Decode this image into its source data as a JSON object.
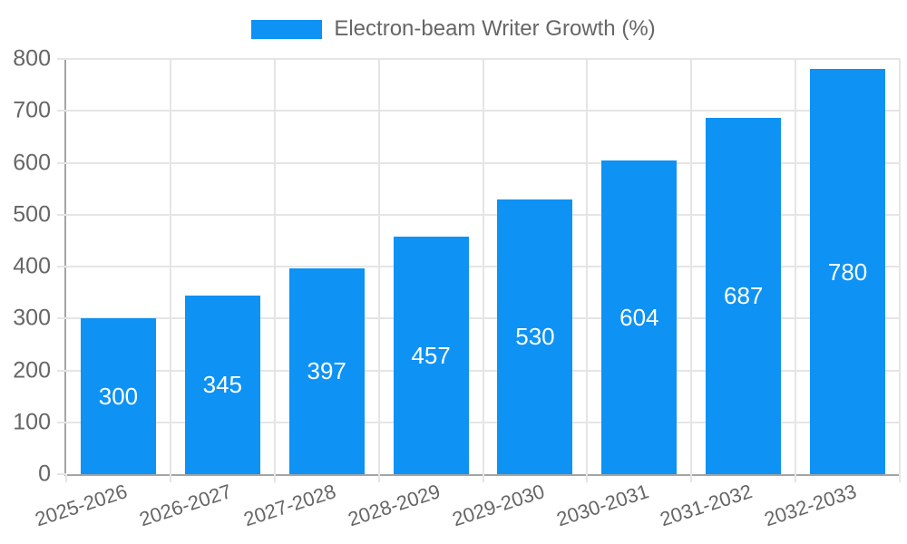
{
  "legend": {
    "label": "Electron-beam Writer Growth (%)"
  },
  "chart_data": {
    "type": "bar",
    "title": "Electron-beam Writer Growth (%)",
    "categories": [
      "2025-2026",
      "2026-2027",
      "2027-2028",
      "2028-2029",
      "2029-2030",
      "2030-2031",
      "2031-2032",
      "2032-2033"
    ],
    "values": [
      300,
      345,
      397,
      457,
      530,
      604,
      687,
      780
    ],
    "value_labels": [
      "300",
      "345",
      "397",
      "457",
      "530",
      "604",
      "687",
      "780"
    ],
    "xlabel": "",
    "ylabel": "",
    "ylim": [
      0,
      800
    ],
    "ytick_step": 100,
    "ytick_labels": [
      "0",
      "100",
      "200",
      "300",
      "400",
      "500",
      "600",
      "700",
      "800"
    ],
    "grid": true,
    "legend_position": "top",
    "bar_color": "#0e92f4",
    "grid_color": "#e5e5e5",
    "axis_color": "#a4a4a4",
    "tick_label_color": "#666666",
    "value_label_color": "#ffffff"
  }
}
